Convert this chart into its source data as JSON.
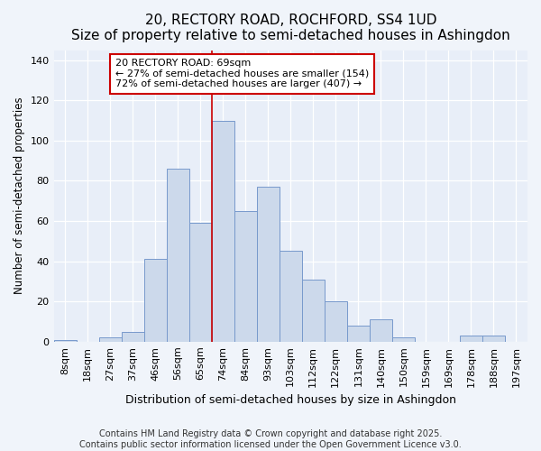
{
  "title": "20, RECTORY ROAD, ROCHFORD, SS4 1UD",
  "subtitle": "Size of property relative to semi-detached houses in Ashingdon",
  "xlabel": "Distribution of semi-detached houses by size in Ashingdon",
  "ylabel_label": "Number of semi-detached properties",
  "bin_labels": [
    "8sqm",
    "18sqm",
    "27sqm",
    "37sqm",
    "46sqm",
    "56sqm",
    "65sqm",
    "74sqm",
    "84sqm",
    "93sqm",
    "103sqm",
    "112sqm",
    "122sqm",
    "131sqm",
    "140sqm",
    "150sqm",
    "159sqm",
    "169sqm",
    "178sqm",
    "188sqm",
    "197sqm"
  ],
  "bar_heights": [
    1,
    0,
    2,
    5,
    41,
    86,
    59,
    110,
    65,
    77,
    45,
    31,
    20,
    8,
    11,
    2,
    0,
    0,
    3,
    3,
    0
  ],
  "bar_color": "#ccd9eb",
  "bar_edge_color": "#7799cc",
  "property_line_x": 6.5,
  "annotation_text_line1": "20 RECTORY ROAD: 69sqm",
  "annotation_text_line2": "← 27% of semi-detached houses are smaller (154)",
  "annotation_text_line3": "72% of semi-detached houses are larger (407) →",
  "annotation_box_color": "#ffffff",
  "annotation_box_edge_color": "#cc0000",
  "vline_color": "#cc0000",
  "background_color": "#f0f4fa",
  "plot_background_color": "#e8eef8",
  "footer_line1": "Contains HM Land Registry data © Crown copyright and database right 2025.",
  "footer_line2": "Contains public sector information licensed under the Open Government Licence v3.0.",
  "title_fontsize": 11,
  "subtitle_fontsize": 9.5,
  "xlabel_fontsize": 9,
  "ylabel_fontsize": 8.5,
  "tick_fontsize": 8,
  "annotation_fontsize": 8,
  "footer_fontsize": 7,
  "ylim": [
    0,
    145
  ],
  "yticks": [
    0,
    20,
    40,
    60,
    80,
    100,
    120,
    140
  ]
}
